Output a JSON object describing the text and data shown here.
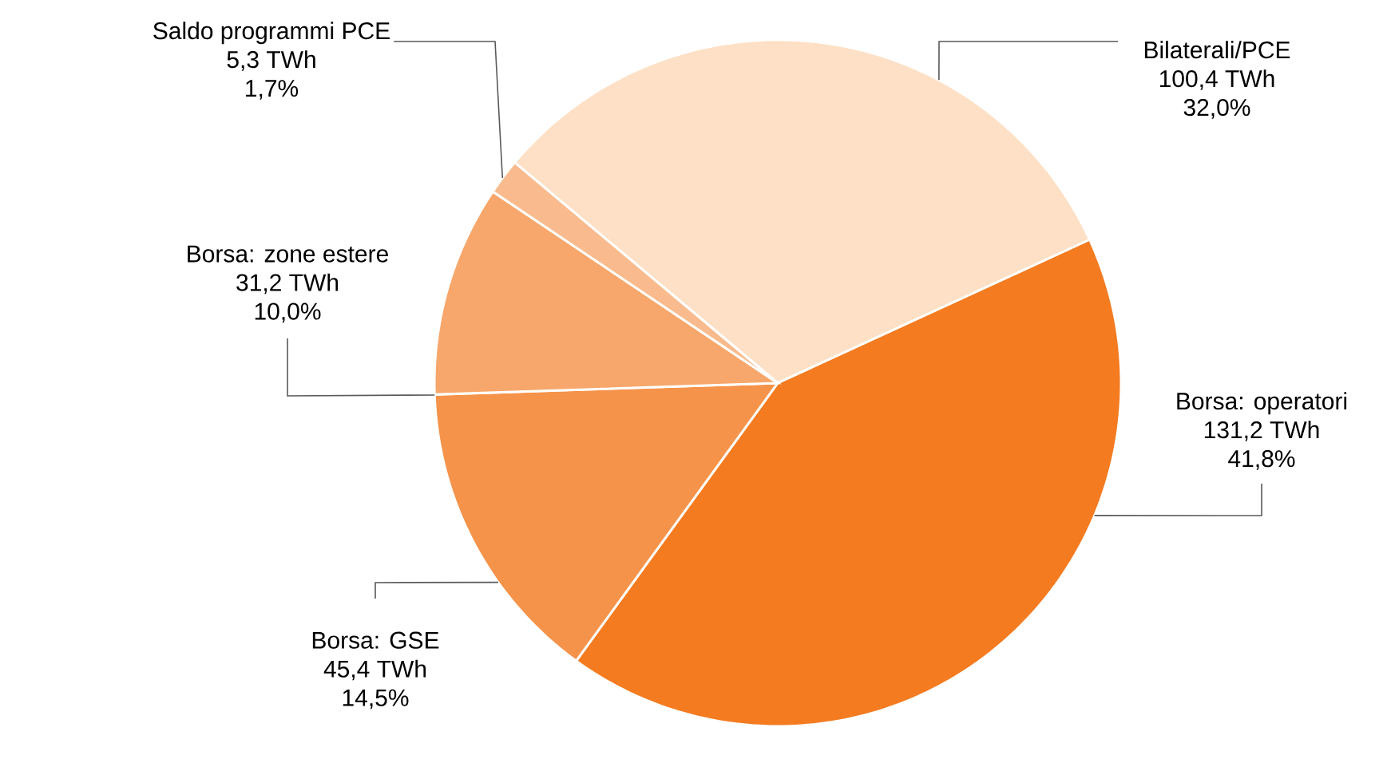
{
  "chart_data": {
    "type": "pie",
    "categories": [
      "Bilaterali/PCE",
      "Borsa: operatori",
      "Borsa: GSE",
      "Borsa: zone estere",
      "Saldo programmi PCE"
    ],
    "values": [
      100.4,
      131.2,
      45.4,
      31.2,
      5.3
    ],
    "colors": [
      "#fde0c5",
      "#f47b20",
      "#f5934a",
      "#f7a76b",
      "#f9bb8d"
    ],
    "value_labels": [
      "100,4 TWh",
      "131,2 TWh",
      "45,4 TWh",
      "31,2 TWh",
      "5,3 TWh"
    ],
    "annotations": [
      {
        "text": "32,0%",
        "x": "Bilaterali/PCE"
      },
      {
        "text": "41,8%",
        "x": "Borsa: operatori"
      },
      {
        "text": "14,5%",
        "x": "Borsa: GSE"
      },
      {
        "text": "10,0%",
        "x": "Borsa: zone estere"
      },
      {
        "text": "1,7%",
        "x": "Saldo programmi PCE"
      }
    ]
  }
}
